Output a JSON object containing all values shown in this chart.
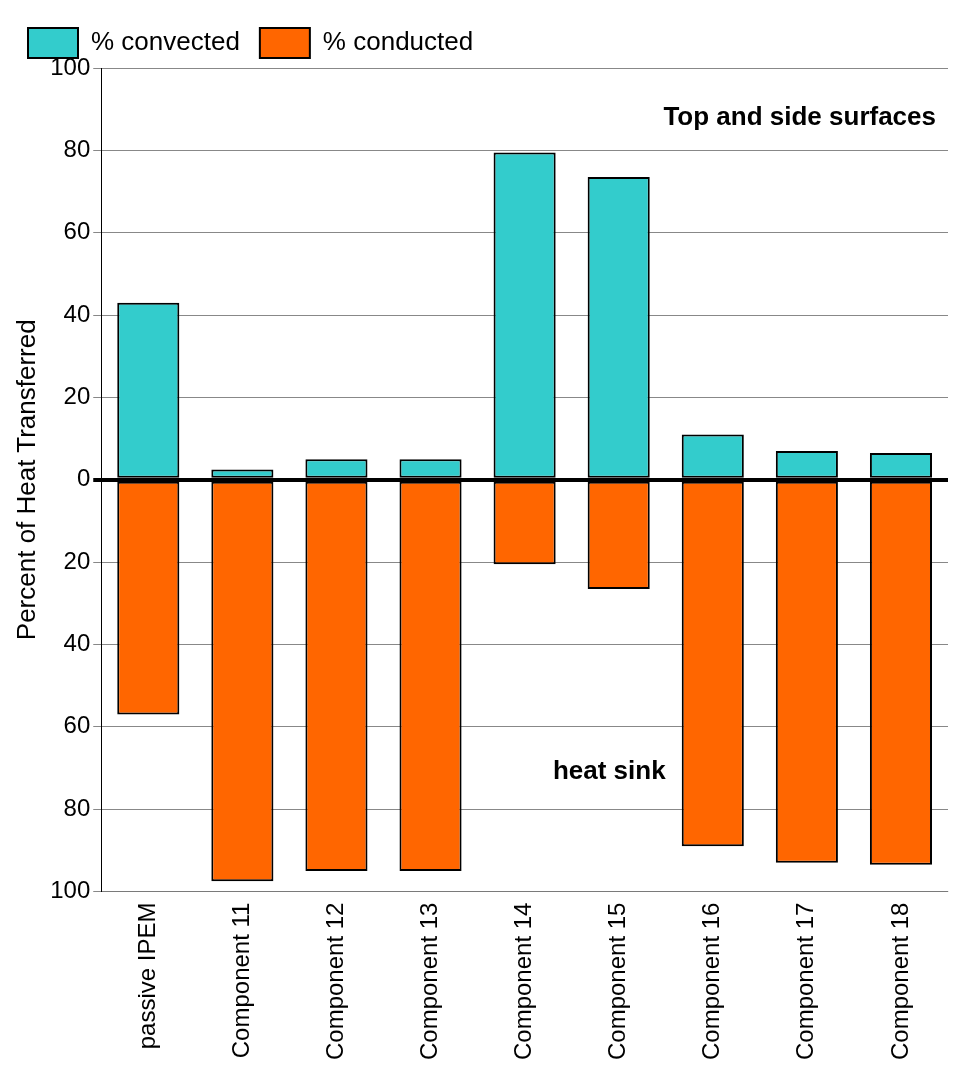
{
  "chart_data": {
    "type": "bar",
    "stacked": true,
    "ylabel": "Percent of Heat Transferred",
    "categories": [
      "passive IPEM",
      "Component 11",
      "Component 12",
      "Component 13",
      "Component 14",
      "Component 15",
      "Component 16",
      "Component 17",
      "Component 18"
    ],
    "series": [
      {
        "name": "% convected",
        "color": "#33cccc",
        "values": [
          43,
          2.5,
          5,
          5,
          79.5,
          73.5,
          11,
          7,
          6.5
        ]
      },
      {
        "name": "% conducted",
        "color": "#ff6600",
        "values": [
          -57,
          -97.5,
          -95,
          -95,
          -20.5,
          -26.5,
          -89,
          -93,
          -93.5
        ]
      }
    ],
    "ylim": [
      -100,
      100
    ],
    "yticks": [
      {
        "value": -100,
        "label": "100"
      },
      {
        "value": -80,
        "label": "80"
      },
      {
        "value": -60,
        "label": "60"
      },
      {
        "value": -40,
        "label": "40"
      },
      {
        "value": -20,
        "label": "20"
      },
      0,
      20,
      40,
      60,
      80,
      100
    ],
    "grid": "y",
    "legend": "top left",
    "annotations": [
      "Top and side surfaces",
      "heat sink"
    ]
  }
}
